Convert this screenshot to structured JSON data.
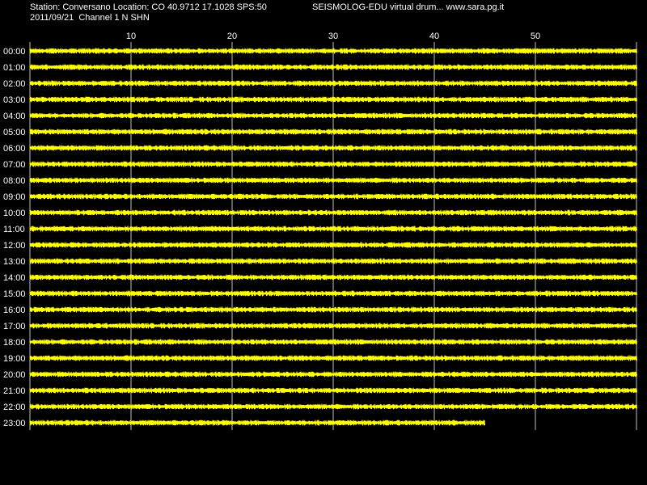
{
  "header": {
    "station_line": "Station: Conversano Location: CO 40.9712 17.1028 SPS:50",
    "app_line": "SEISMOLOG-EDU virtual drum... www.sara.pg.it",
    "date_channel_line": "2011/09/21  Channel 1 N SHN"
  },
  "colors": {
    "background": "#000000",
    "trace": "#ffff00",
    "grid": "#c0c0c0",
    "text": "#ffffff"
  },
  "chart_data": {
    "type": "line",
    "title": "",
    "xlabel": "",
    "ylabel": "",
    "x_unit": "minutes",
    "xlim": [
      0,
      60
    ],
    "x_ticks": [
      10,
      20,
      30,
      40,
      50
    ],
    "grid": true,
    "rows": [
      {
        "label": "00:00",
        "end_minute": 60
      },
      {
        "label": "01:00",
        "end_minute": 60
      },
      {
        "label": "02:00",
        "end_minute": 60
      },
      {
        "label": "03:00",
        "end_minute": 60
      },
      {
        "label": "04:00",
        "end_minute": 60
      },
      {
        "label": "05:00",
        "end_minute": 60
      },
      {
        "label": "06:00",
        "end_minute": 60
      },
      {
        "label": "07:00",
        "end_minute": 60
      },
      {
        "label": "08:00",
        "end_minute": 60
      },
      {
        "label": "09:00",
        "end_minute": 60
      },
      {
        "label": "10:00",
        "end_minute": 60
      },
      {
        "label": "11:00",
        "end_minute": 60
      },
      {
        "label": "12:00",
        "end_minute": 60
      },
      {
        "label": "13:00",
        "end_minute": 60
      },
      {
        "label": "14:00",
        "end_minute": 60
      },
      {
        "label": "15:00",
        "end_minute": 60
      },
      {
        "label": "16:00",
        "end_minute": 60
      },
      {
        "label": "17:00",
        "end_minute": 60
      },
      {
        "label": "18:00",
        "end_minute": 60
      },
      {
        "label": "19:00",
        "end_minute": 60
      },
      {
        "label": "20:00",
        "end_minute": 60
      },
      {
        "label": "21:00",
        "end_minute": 60
      },
      {
        "label": "22:00",
        "end_minute": 60
      },
      {
        "label": "23:00",
        "end_minute": 45
      }
    ]
  }
}
